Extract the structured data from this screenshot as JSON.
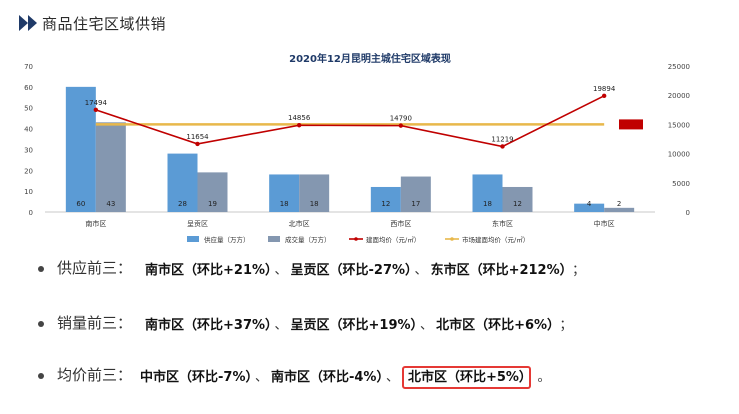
{
  "header": {
    "title": "商品住宅区域供销"
  },
  "chart_data": {
    "type": "bar",
    "title": "2020年12月昆明主城住宅区域表现",
    "categories": [
      "南市区",
      "呈贡区",
      "北市区",
      "西市区",
      "东市区",
      "中市区"
    ],
    "series": [
      {
        "name": "供应量（万方）",
        "type": "bar",
        "axis": "left",
        "values": [
          60,
          28,
          18,
          12,
          18,
          4
        ],
        "color": "#5b9bd5"
      },
      {
        "name": "成交量（万方）",
        "type": "bar",
        "axis": "left",
        "values": [
          43,
          19,
          18,
          17,
          12,
          2
        ],
        "color": "#8497b0"
      },
      {
        "name": "建面均价（元/㎡）",
        "type": "line",
        "axis": "right",
        "values": [
          17494,
          11654,
          14856,
          14790,
          11219,
          19894
        ],
        "color": "#c00000"
      },
      {
        "name": "市场建面均价（元/㎡）",
        "type": "line",
        "axis": "right",
        "values": [
          15000,
          15000,
          15000,
          15000,
          15000,
          15000
        ],
        "color": "#e8b84b"
      }
    ],
    "left_axis": {
      "min": 0,
      "max": 70,
      "ticks": [
        0,
        10,
        20,
        30,
        40,
        50,
        60,
        70
      ]
    },
    "right_axis": {
      "min": 0,
      "max": 25000,
      "ticks": [
        0,
        5000,
        10000,
        15000,
        20000,
        25000
      ]
    },
    "legend": "bottom"
  },
  "bullets": [
    {
      "label": "供应前三：",
      "items": [
        "南市区（环比+21%）",
        "呈贡区（环比-27%）",
        "东市区（环比+212%）"
      ],
      "end": "；",
      "highlight": -1
    },
    {
      "label": "销量前三：",
      "items": [
        "南市区（环比+37%）",
        "呈贡区（环比+19%）",
        "北市区（环比+6%）"
      ],
      "end": "；",
      "highlight": -1
    },
    {
      "label": "均价前三：",
      "items": [
        "中市区（环比-7%）",
        "南市区（环比-4%）",
        "北市区（环比+5%）"
      ],
      "end": "。",
      "highlight": 2
    }
  ],
  "separator": "、"
}
